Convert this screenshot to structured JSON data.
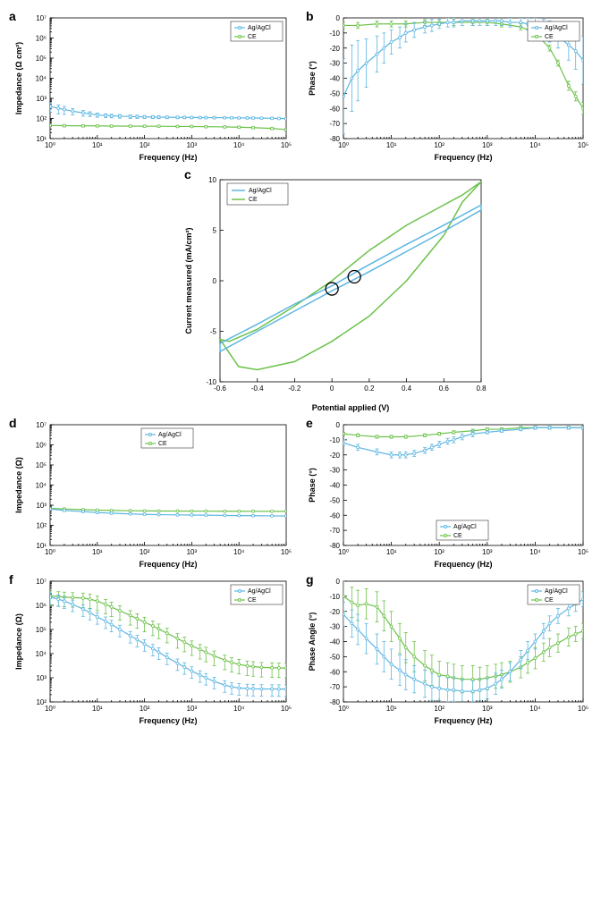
{
  "colors": {
    "series1": "#5db6e2",
    "series2": "#6cc24a",
    "axis": "#000000",
    "background": "#ffffff",
    "marker_stroke": "#000000"
  },
  "legend": {
    "s1": "Ag/AgCl",
    "s2": "CE"
  },
  "panel_labels": {
    "a": "a",
    "b": "b",
    "c": "c",
    "d": "d",
    "e": "e",
    "f": "f",
    "g": "g"
  },
  "plotA": {
    "type": "log-log-errorbar",
    "xlabel": "Frequency (Hz)",
    "ylabel": "Impedance (Ω cm²)",
    "xlim": [
      1,
      100000
    ],
    "ylim": [
      10,
      10000000
    ],
    "xticks": [
      1,
      10,
      100,
      1000,
      10000,
      100000
    ],
    "yticks": [
      10,
      100,
      1000,
      10000,
      100000,
      1000000,
      10000000
    ],
    "series1": {
      "x": [
        1,
        1.5,
        2,
        3,
        5,
        7,
        10,
        15,
        20,
        30,
        50,
        70,
        100,
        150,
        200,
        300,
        500,
        700,
        1000,
        1500,
        2000,
        3000,
        5000,
        7000,
        10000,
        15000,
        20000,
        30000,
        50000,
        70000,
        100000
      ],
      "y": [
        400,
        320,
        280,
        230,
        190,
        170,
        150,
        140,
        135,
        130,
        125,
        122,
        120,
        118,
        116,
        115,
        114,
        113,
        112,
        111,
        110,
        110,
        109,
        108,
        107,
        106,
        105,
        104,
        102,
        100,
        98
      ],
      "yerr": [
        200,
        150,
        120,
        80,
        60,
        45,
        35,
        30,
        28,
        26,
        24,
        22,
        20,
        19,
        18,
        17,
        16,
        15,
        14,
        14,
        13,
        13,
        12,
        12,
        11,
        11,
        10,
        10,
        9,
        9,
        9
      ]
    },
    "series2": {
      "x": [
        1,
        2,
        5,
        10,
        20,
        50,
        100,
        200,
        500,
        1000,
        2000,
        5000,
        10000,
        20000,
        50000,
        100000
      ],
      "y": [
        45,
        44,
        43,
        43,
        42,
        42,
        41,
        41,
        40,
        40,
        39,
        38,
        37,
        35,
        32,
        28
      ],
      "yerr": [
        6,
        6,
        5,
        5,
        5,
        5,
        4,
        4,
        4,
        4,
        4,
        4,
        4,
        4,
        4,
        4
      ]
    },
    "legend_pos": "top-right"
  },
  "plotB": {
    "type": "semilogx-errorbar",
    "xlabel": "Frequency (Hz)",
    "ylabel": "Phase (°)",
    "xlim": [
      1,
      100000
    ],
    "ylim": [
      -80,
      0
    ],
    "xticks": [
      1,
      10,
      100,
      1000,
      10000,
      100000
    ],
    "yticks": [
      -80,
      -70,
      -60,
      -50,
      -40,
      -30,
      -20,
      -10,
      0
    ],
    "series1": {
      "x": [
        1,
        1.5,
        2,
        3,
        5,
        7,
        10,
        15,
        20,
        30,
        50,
        70,
        100,
        150,
        200,
        300,
        500,
        700,
        1000,
        1500,
        2000,
        3000,
        5000,
        7000,
        10000,
        15000,
        20000,
        30000,
        50000,
        70000,
        100000
      ],
      "y": [
        -52,
        -40,
        -35,
        -30,
        -24,
        -20,
        -16,
        -13,
        -10,
        -8,
        -6,
        -5,
        -4,
        -3,
        -3,
        -2,
        -2,
        -2,
        -2,
        -2,
        -2,
        -3,
        -3,
        -4,
        -5,
        -7,
        -9,
        -12,
        -18,
        -22,
        -28
      ],
      "yerr": [
        25,
        22,
        20,
        16,
        12,
        10,
        8,
        7,
        6,
        5,
        4,
        4,
        3,
        3,
        3,
        3,
        3,
        3,
        3,
        3,
        3,
        3,
        3,
        4,
        5,
        6,
        7,
        8,
        10,
        12,
        16
      ]
    },
    "series2": {
      "x": [
        1,
        2,
        5,
        10,
        20,
        50,
        100,
        200,
        500,
        1000,
        2000,
        5000,
        10000,
        20000,
        30000,
        50000,
        70000,
        100000
      ],
      "y": [
        -5,
        -5,
        -4,
        -4,
        -4,
        -3,
        -3,
        -3,
        -3,
        -3,
        -4,
        -6,
        -10,
        -20,
        -30,
        -45,
        -52,
        -60
      ],
      "yerr": [
        2,
        2,
        2,
        2,
        2,
        2,
        2,
        2,
        2,
        2,
        2,
        2,
        2,
        2,
        2,
        3,
        3,
        4
      ]
    },
    "legend_pos": "top-right"
  },
  "plotC": {
    "type": "cv",
    "xlabel": "Potential applied (V)",
    "ylabel": "Current measured (mA/cm²)",
    "xlim": [
      -0.6,
      0.8
    ],
    "ylim": [
      -10,
      10
    ],
    "xticks": [
      -0.6,
      -0.4,
      -0.2,
      0,
      0.2,
      0.4,
      0.6,
      0.8
    ],
    "yticks": [
      -10,
      -5,
      0,
      5,
      10
    ],
    "series1": {
      "forward": [
        [
          -0.6,
          -6.2
        ],
        [
          -0.4,
          -4.3
        ],
        [
          -0.2,
          -2.3
        ],
        [
          0.0,
          -0.5
        ],
        [
          0.2,
          1.6
        ],
        [
          0.4,
          3.6
        ],
        [
          0.6,
          5.5
        ],
        [
          0.8,
          7.5
        ]
      ],
      "reverse": [
        [
          0.8,
          7.0
        ],
        [
          0.6,
          4.9
        ],
        [
          0.4,
          2.9
        ],
        [
          0.2,
          0.9
        ],
        [
          0.0,
          -1.0
        ],
        [
          -0.2,
          -3.0
        ],
        [
          -0.4,
          -5.0
        ],
        [
          -0.6,
          -7.0
        ]
      ],
      "marker": [
        0.12,
        0.4
      ]
    },
    "series2": {
      "forward": [
        [
          -0.6,
          -5.8
        ],
        [
          -0.5,
          -8.5
        ],
        [
          -0.4,
          -8.8
        ],
        [
          -0.2,
          -8.0
        ],
        [
          0.0,
          -6.0
        ],
        [
          0.2,
          -3.5
        ],
        [
          0.4,
          0.0
        ],
        [
          0.6,
          4.5
        ],
        [
          0.7,
          7.8
        ],
        [
          0.8,
          9.8
        ]
      ],
      "reverse": [
        [
          0.8,
          9.8
        ],
        [
          0.7,
          8.5
        ],
        [
          0.6,
          7.5
        ],
        [
          0.4,
          5.5
        ],
        [
          0.2,
          3.0
        ],
        [
          0.0,
          0.0
        ],
        [
          -0.2,
          -2.5
        ],
        [
          -0.4,
          -4.8
        ],
        [
          -0.55,
          -6.0
        ],
        [
          -0.6,
          -5.8
        ]
      ],
      "marker": [
        0.0,
        -0.8
      ]
    },
    "marker_radius": 7,
    "legend_pos": "top-left"
  },
  "plotD": {
    "type": "log-log-errorbar",
    "xlabel": "Frequency (Hz)",
    "ylabel": "Impedance (Ω)",
    "xlim": [
      1,
      100000
    ],
    "ylim": [
      10,
      10000000
    ],
    "xticks": [
      1,
      10,
      100,
      1000,
      10000,
      100000
    ],
    "yticks": [
      10,
      100,
      1000,
      10000,
      100000,
      1000000,
      10000000
    ],
    "series1": {
      "x": [
        1,
        2,
        5,
        10,
        20,
        50,
        100,
        200,
        500,
        1000,
        2000,
        5000,
        10000,
        20000,
        50000,
        100000
      ],
      "y": [
        650,
        550,
        480,
        430,
        400,
        370,
        350,
        340,
        330,
        325,
        320,
        310,
        305,
        300,
        295,
        290
      ],
      "yerr": [
        60,
        50,
        40,
        35,
        30,
        28,
        25,
        24,
        23,
        22,
        21,
        20,
        19,
        18,
        17,
        16
      ]
    },
    "series2": {
      "x": [
        1,
        2,
        5,
        10,
        20,
        50,
        100,
        200,
        500,
        1000,
        2000,
        5000,
        10000,
        20000,
        50000,
        100000
      ],
      "y": [
        700,
        650,
        600,
        570,
        550,
        530,
        520,
        515,
        510,
        508,
        505,
        502,
        500,
        498,
        496,
        495
      ],
      "yerr": [
        50,
        45,
        40,
        35,
        32,
        30,
        28,
        26,
        24,
        22,
        20,
        18,
        17,
        16,
        15,
        14
      ]
    },
    "legend_pos": "top-center"
  },
  "plotE": {
    "type": "semilogx-errorbar",
    "xlabel": "Frequency (Hz)",
    "ylabel": "Phase (°)",
    "xlim": [
      1,
      100000
    ],
    "ylim": [
      -80,
      0
    ],
    "xticks": [
      1,
      10,
      100,
      1000,
      10000,
      100000
    ],
    "yticks": [
      -80,
      -70,
      -60,
      -50,
      -40,
      -30,
      -20,
      -10,
      0
    ],
    "series1": {
      "x": [
        1,
        2,
        5,
        10,
        15,
        20,
        30,
        50,
        70,
        100,
        150,
        200,
        300,
        500,
        1000,
        2000,
        5000,
        10000,
        20000,
        50000,
        100000
      ],
      "y": [
        -12,
        -15,
        -18,
        -20,
        -20,
        -20,
        -19,
        -17,
        -15,
        -13,
        -11,
        -10,
        -8,
        -6,
        -5,
        -4,
        -3,
        -2,
        -2,
        -2,
        -2
      ],
      "yerr": [
        2,
        2,
        2,
        2,
        2,
        2,
        2,
        2,
        2,
        2,
        2,
        2,
        2,
        2,
        1,
        1,
        1,
        1,
        1,
        1,
        1
      ]
    },
    "series2": {
      "x": [
        1,
        2,
        5,
        10,
        20,
        50,
        100,
        200,
        500,
        1000,
        2000,
        5000,
        10000,
        20000,
        50000,
        100000
      ],
      "y": [
        -6,
        -7,
        -8,
        -8,
        -8,
        -7,
        -6,
        -5,
        -4,
        -3,
        -3,
        -2,
        -2,
        -2,
        -2,
        -2
      ],
      "yerr": [
        1,
        1,
        1,
        1,
        1,
        1,
        1,
        1,
        1,
        1,
        1,
        1,
        1,
        1,
        1,
        1
      ]
    },
    "legend_pos": "bottom-center"
  },
  "plotF": {
    "type": "log-log-errorbar",
    "xlabel": "Frequency (Hz)",
    "ylabel": "Impedance (Ω)",
    "xlim": [
      1,
      100000
    ],
    "ylim": [
      100,
      10000000
    ],
    "xticks": [
      1,
      10,
      100,
      1000,
      10000,
      100000
    ],
    "yticks": [
      100,
      1000,
      10000,
      100000,
      1000000,
      10000000
    ],
    "series1": {
      "x": [
        1,
        1.5,
        2,
        3,
        5,
        7,
        10,
        15,
        20,
        30,
        50,
        70,
        100,
        150,
        200,
        300,
        500,
        700,
        1000,
        1500,
        2000,
        3000,
        5000,
        7000,
        10000,
        15000,
        20000,
        30000,
        50000,
        70000,
        100000
      ],
      "y": [
        2200000,
        1800000,
        1500000,
        1100000,
        700000,
        500000,
        330000,
        220000,
        160000,
        100000,
        55000,
        38000,
        25000,
        16000,
        11500,
        7000,
        4000,
        2800,
        1900,
        1300,
        1000,
        700,
        500,
        420,
        380,
        360,
        350,
        345,
        342,
        340,
        340
      ],
      "yerr_rel": 0.5
    },
    "series2": {
      "x": [
        1,
        1.5,
        2,
        3,
        5,
        7,
        10,
        15,
        20,
        30,
        50,
        70,
        100,
        150,
        200,
        300,
        500,
        700,
        1000,
        1500,
        2000,
        3000,
        5000,
        7000,
        10000,
        15000,
        20000,
        30000,
        50000,
        70000,
        100000
      ],
      "y": [
        2500000,
        2300000,
        2200000,
        2100000,
        2000000,
        1800000,
        1500000,
        1100000,
        850000,
        600000,
        380000,
        280000,
        200000,
        140000,
        105000,
        70000,
        42000,
        30000,
        21000,
        15000,
        11500,
        8000,
        5400,
        4300,
        3600,
        3100,
        2900,
        2700,
        2600,
        2550,
        2500
      ],
      "yerr_rel": 0.6
    },
    "legend_pos": "top-right"
  },
  "plotG": {
    "type": "semilogx-errorbar",
    "xlabel": "Frequency (Hz)",
    "ylabel": "Phase Angle (°)",
    "xlim": [
      1,
      100000
    ],
    "ylim": [
      -80,
      0
    ],
    "xticks": [
      1,
      10,
      100,
      1000,
      10000,
      100000
    ],
    "yticks": [
      -80,
      -70,
      -60,
      -50,
      -40,
      -30,
      -20,
      -10,
      0
    ],
    "series1": {
      "x": [
        1,
        1.5,
        2,
        3,
        5,
        7,
        10,
        15,
        20,
        30,
        50,
        70,
        100,
        150,
        200,
        300,
        500,
        700,
        1000,
        1500,
        2000,
        3000,
        5000,
        7000,
        10000,
        15000,
        20000,
        30000,
        50000,
        70000,
        100000
      ],
      "y": [
        -22,
        -28,
        -32,
        -38,
        -45,
        -50,
        -55,
        -59,
        -62,
        -65,
        -68,
        -70,
        -71,
        -72,
        -72,
        -73,
        -73,
        -72,
        -71,
        -68,
        -65,
        -60,
        -52,
        -46,
        -40,
        -33,
        -28,
        -23,
        -18,
        -15,
        -12
      ],
      "yerr": [
        8,
        9,
        10,
        10,
        10,
        10,
        10,
        10,
        10,
        9,
        9,
        9,
        8,
        8,
        8,
        8,
        7,
        7,
        7,
        7,
        6,
        6,
        6,
        6,
        5,
        5,
        5,
        5,
        5,
        5,
        5
      ]
    },
    "series2": {
      "x": [
        1,
        1.5,
        2,
        3,
        5,
        7,
        10,
        15,
        20,
        30,
        50,
        70,
        100,
        150,
        200,
        300,
        500,
        700,
        1000,
        1500,
        2000,
        3000,
        5000,
        7000,
        10000,
        15000,
        20000,
        30000,
        50000,
        70000,
        100000
      ],
      "y": [
        -10,
        -14,
        -16,
        -15,
        -17,
        -23,
        -30,
        -38,
        -44,
        -50,
        -56,
        -59,
        -62,
        -63,
        -64,
        -65,
        -65,
        -65,
        -64,
        -63,
        -62,
        -60,
        -57,
        -54,
        -51,
        -47,
        -44,
        -41,
        -37,
        -35,
        -33
      ],
      "yerr": [
        10,
        10,
        10,
        10,
        10,
        10,
        10,
        10,
        10,
        10,
        10,
        10,
        9,
        9,
        9,
        9,
        9,
        8,
        8,
        8,
        8,
        7,
        7,
        7,
        7,
        6,
        6,
        6,
        6,
        5,
        5
      ]
    },
    "legend_pos": "top-right"
  }
}
